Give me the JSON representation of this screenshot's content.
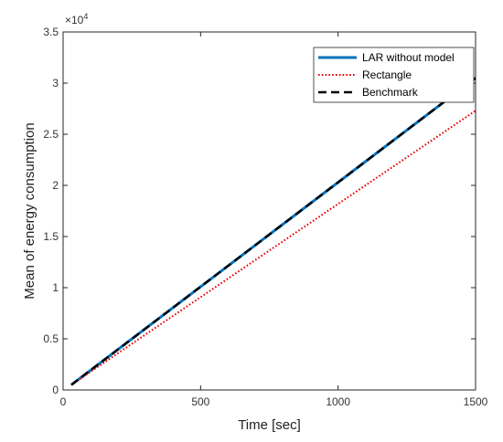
{
  "chart_data": {
    "type": "line",
    "xlabel": "Time [sec]",
    "ylabel": "Mean of energy consumption",
    "y_multiplier": "×10",
    "y_multiplier_exp": "4",
    "xlim": [
      0,
      1500
    ],
    "ylim": [
      0,
      35000
    ],
    "x_ticks": [
      0,
      500,
      1000,
      1500
    ],
    "x_tick_labels": [
      "0",
      "500",
      "1000",
      "1500"
    ],
    "y_ticks": [
      0,
      5000,
      10000,
      15000,
      20000,
      25000,
      30000,
      35000
    ],
    "y_tick_labels": [
      "0",
      "0.5",
      "1",
      "1.5",
      "2",
      "2.5",
      "3",
      "3.5"
    ],
    "grid": false,
    "legend_position": "top-right",
    "series": [
      {
        "name": "LAR without model",
        "color": "#0072BD",
        "style": "solid",
        "x": [
          30,
          1500
        ],
        "y": [
          500,
          30500
        ]
      },
      {
        "name": "Rectangle",
        "color": "#e60000",
        "style": "dotted",
        "x": [
          30,
          1500
        ],
        "y": [
          500,
          27300
        ]
      },
      {
        "name": "Benchmark",
        "color": "#000000",
        "style": "dashed",
        "x": [
          30,
          1500
        ],
        "y": [
          500,
          30500
        ]
      }
    ]
  }
}
